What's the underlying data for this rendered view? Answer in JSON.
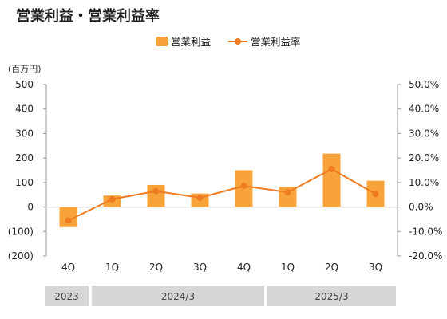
{
  "title": "営業利益・営業利益率",
  "legend": {
    "bar_label": "営業利益",
    "line_label": "営業利益率"
  },
  "colors": {
    "bar": "#f8a33a",
    "line": "#ee7b22",
    "grid": "#d9d9d9",
    "axis": "#999999",
    "period_band": "#d6d6d6"
  },
  "chart_data": {
    "type": "bar",
    "categories": [
      "4Q",
      "1Q",
      "2Q",
      "3Q",
      "4Q",
      "1Q",
      "2Q",
      "3Q"
    ],
    "series": [
      {
        "name": "営業利益",
        "type": "bar",
        "axis": "left",
        "values": [
          -82,
          47,
          90,
          55,
          150,
          82,
          218,
          107
        ]
      },
      {
        "name": "営業利益率",
        "type": "line",
        "axis": "right",
        "values": [
          -5.5,
          3.2,
          6.5,
          3.8,
          8.6,
          6.0,
          15.5,
          5.3
        ]
      }
    ],
    "ylabel": "(百万円)",
    "ylim": [
      -200,
      500
    ],
    "y_ticks": [
      "(200)",
      "(100)",
      "0",
      "100",
      "200",
      "300",
      "400",
      "500"
    ],
    "y2lim": [
      -20,
      50
    ],
    "y2_ticks": [
      "-20.0%",
      "-10.0%",
      "0.0%",
      "10.0%",
      "20.0%",
      "30.0%",
      "40.0%",
      "50.0%"
    ],
    "periods": [
      {
        "label": "2023",
        "count": 1
      },
      {
        "label": "2024/3",
        "count": 4
      },
      {
        "label": "2025/3",
        "count": 3
      }
    ],
    "grid": false,
    "legend_position": "top-right"
  }
}
